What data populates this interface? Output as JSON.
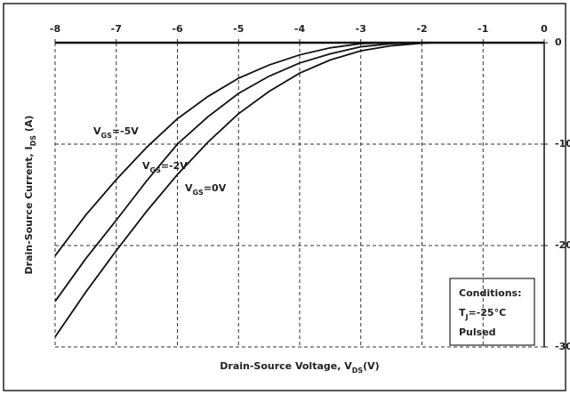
{
  "chart_data": {
    "type": "line",
    "xlabel": [
      {
        "text": "Drain-Source Voltage, V"
      },
      {
        "text": "DS",
        "sub": true
      },
      {
        "text": "(V)"
      }
    ],
    "ylabel": [
      {
        "text": "Drain-Source Current, I"
      },
      {
        "text": "DS",
        "sub": true
      },
      {
        "text": " (A)"
      }
    ],
    "xlim": [
      -8,
      0
    ],
    "ylim": [
      -30,
      0
    ],
    "xticks": [
      -8,
      -7,
      -6,
      -5,
      -4,
      -3,
      -2,
      -1,
      0
    ],
    "yticks": [
      0,
      -10,
      -20,
      -30
    ],
    "grid": true,
    "series": [
      {
        "name": [
          {
            "text": "V"
          },
          {
            "text": "GS",
            "sub": true
          },
          {
            "text": "=-5V"
          }
        ],
        "color": "#111",
        "x": [
          -8,
          -7.5,
          -7,
          -6.5,
          -6,
          -5.5,
          -5,
          -4.5,
          -4,
          -3.5,
          -3,
          -2.5
        ],
        "values": [
          -21,
          -17,
          -13.5,
          -10.3,
          -7.5,
          -5.3,
          -3.5,
          -2.2,
          -1.2,
          -0.5,
          -0.1,
          0
        ]
      },
      {
        "name": [
          {
            "text": "V"
          },
          {
            "text": "GS",
            "sub": true
          },
          {
            "text": "=-2V"
          }
        ],
        "color": "#111",
        "x": [
          -8,
          -7.5,
          -7,
          -6.5,
          -6,
          -5.5,
          -5,
          -4.5,
          -4,
          -3.5,
          -3,
          -2.5,
          -2
        ],
        "values": [
          -25.5,
          -21.3,
          -17.5,
          -13.6,
          -10,
          -7.3,
          -5,
          -3.3,
          -2,
          -1.1,
          -0.4,
          -0.1,
          0
        ]
      },
      {
        "name": [
          {
            "text": "V"
          },
          {
            "text": "GS",
            "sub": true
          },
          {
            "text": "=0V"
          }
        ],
        "color": "#111",
        "x": [
          -8,
          -7.5,
          -7,
          -6.5,
          -6,
          -5.5,
          -5,
          -4.5,
          -4,
          -3.5,
          -3,
          -2.5,
          -2,
          -1.8
        ],
        "values": [
          -29,
          -24.6,
          -20.5,
          -16.6,
          -13,
          -9.8,
          -7,
          -4.8,
          -3,
          -1.7,
          -0.8,
          -0.3,
          -0.05,
          0
        ]
      }
    ],
    "conditions": [
      [
        {
          "text": "Conditions:"
        }
      ],
      [
        {
          "text": "T"
        },
        {
          "text": "J",
          "sub": true
        },
        {
          "text": "=-25°C"
        }
      ],
      [
        {
          "text": "Pulsed"
        }
      ]
    ]
  }
}
